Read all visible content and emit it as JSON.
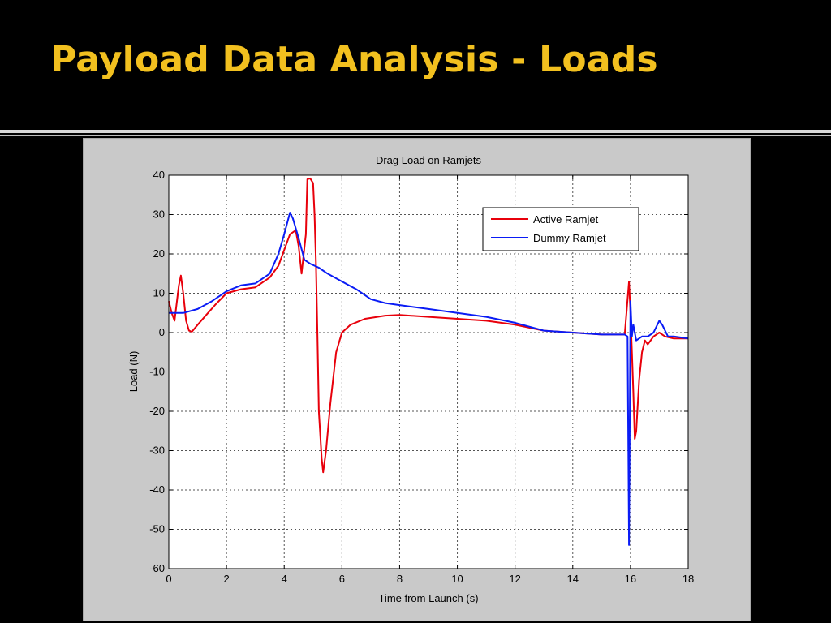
{
  "slide": {
    "title": "Payload Data Analysis - Loads"
  },
  "colors": {
    "background": "#000000",
    "title": "#f2c01f",
    "figure_background": "#c9c9c9",
    "plot_background": "#ffffff",
    "grid": "#555555"
  },
  "chart_data": {
    "type": "line",
    "title": "Drag Load on Ramjets",
    "xlabel": "Time from Launch (s)",
    "ylabel": "Load (N)",
    "xlim": [
      0,
      18
    ],
    "ylim": [
      -60,
      40
    ],
    "xticks": [
      0,
      2,
      4,
      6,
      8,
      10,
      12,
      14,
      16,
      18
    ],
    "yticks": [
      40,
      30,
      20,
      10,
      0,
      -10,
      -20,
      -30,
      -40,
      -50,
      -60
    ],
    "grid": true,
    "grid_style": "dotted",
    "legend_position": "top-right",
    "series": [
      {
        "name": "Active Ramjet",
        "color": "#e8000b",
        "points": [
          [
            0,
            8
          ],
          [
            0.1,
            5
          ],
          [
            0.2,
            3
          ],
          [
            0.35,
            12
          ],
          [
            0.42,
            14.5
          ],
          [
            0.5,
            10
          ],
          [
            0.6,
            3
          ],
          [
            0.7,
            0.5
          ],
          [
            0.8,
            0.2
          ],
          [
            1,
            2
          ],
          [
            1.3,
            4.5
          ],
          [
            1.6,
            7
          ],
          [
            2,
            10
          ],
          [
            2.5,
            11
          ],
          [
            3,
            11.5
          ],
          [
            3.5,
            14
          ],
          [
            3.8,
            17
          ],
          [
            4.0,
            21
          ],
          [
            4.2,
            25
          ],
          [
            4.4,
            26
          ],
          [
            4.5,
            22
          ],
          [
            4.6,
            15
          ],
          [
            4.75,
            25
          ],
          [
            4.8,
            39
          ],
          [
            4.9,
            39.2
          ],
          [
            5.0,
            38
          ],
          [
            5.05,
            30
          ],
          [
            5.1,
            18
          ],
          [
            5.15,
            0
          ],
          [
            5.2,
            -20
          ],
          [
            5.3,
            -32
          ],
          [
            5.35,
            -35.5
          ],
          [
            5.45,
            -30
          ],
          [
            5.6,
            -18
          ],
          [
            5.8,
            -5
          ],
          [
            6.0,
            0
          ],
          [
            6.3,
            2
          ],
          [
            6.8,
            3.5
          ],
          [
            7.5,
            4.3
          ],
          [
            8,
            4.5
          ],
          [
            9,
            4
          ],
          [
            10,
            3.5
          ],
          [
            11,
            3
          ],
          [
            12,
            2
          ],
          [
            13,
            0.5
          ],
          [
            14,
            0
          ],
          [
            15,
            -0.5
          ],
          [
            15.8,
            -0.5
          ],
          [
            15.95,
            13
          ],
          [
            16.0,
            5
          ],
          [
            16.05,
            -5
          ],
          [
            16.1,
            -15
          ],
          [
            16.15,
            -27
          ],
          [
            16.2,
            -25
          ],
          [
            16.3,
            -12
          ],
          [
            16.4,
            -5
          ],
          [
            16.5,
            -2
          ],
          [
            16.6,
            -3
          ],
          [
            16.8,
            -1
          ],
          [
            17,
            0
          ],
          [
            17.2,
            -1
          ],
          [
            17.5,
            -1.5
          ],
          [
            18,
            -1.5
          ]
        ]
      },
      {
        "name": "Dummy Ramjet",
        "color": "#0a1cf5",
        "points": [
          [
            0,
            5
          ],
          [
            0.5,
            5
          ],
          [
            1,
            6
          ],
          [
            1.5,
            8
          ],
          [
            2,
            10.5
          ],
          [
            2.5,
            12
          ],
          [
            3,
            12.5
          ],
          [
            3.5,
            15
          ],
          [
            3.8,
            20
          ],
          [
            4.0,
            25
          ],
          [
            4.2,
            30.5
          ],
          [
            4.3,
            29
          ],
          [
            4.5,
            24
          ],
          [
            4.7,
            18.5
          ],
          [
            4.9,
            17.5
          ],
          [
            5.2,
            16.5
          ],
          [
            5.5,
            15
          ],
          [
            6,
            13
          ],
          [
            6.5,
            11
          ],
          [
            7,
            8.5
          ],
          [
            7.5,
            7.5
          ],
          [
            8,
            7
          ],
          [
            9,
            6
          ],
          [
            10,
            5
          ],
          [
            11,
            4
          ],
          [
            12,
            2.5
          ],
          [
            13,
            0.5
          ],
          [
            14,
            0
          ],
          [
            15,
            -0.5
          ],
          [
            15.8,
            -0.5
          ],
          [
            15.9,
            -1
          ],
          [
            15.95,
            -54
          ],
          [
            16.0,
            8
          ],
          [
            16.05,
            -1
          ],
          [
            16.1,
            2
          ],
          [
            16.2,
            -2
          ],
          [
            16.4,
            -1
          ],
          [
            16.6,
            -1
          ],
          [
            16.8,
            0
          ],
          [
            17,
            3
          ],
          [
            17.1,
            2
          ],
          [
            17.3,
            -1
          ],
          [
            17.5,
            -1
          ],
          [
            18,
            -1.5
          ]
        ]
      }
    ]
  }
}
